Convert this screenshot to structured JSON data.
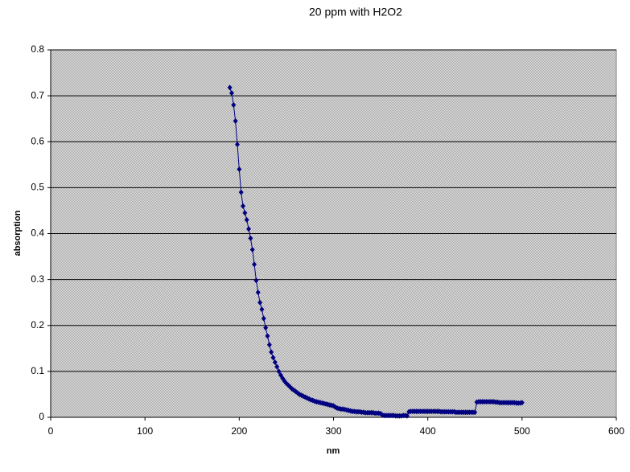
{
  "chart_data": {
    "type": "scatter",
    "title": "20 ppm with H2O2",
    "x_label": "nm",
    "y_label": "absorption",
    "xlim": [
      0,
      600
    ],
    "xticks": [
      0,
      100,
      200,
      300,
      400,
      500,
      600
    ],
    "ylim": [
      0,
      0.8
    ],
    "yticks": [
      0,
      0.1,
      0.2,
      0.3,
      0.4,
      0.5,
      0.6,
      0.7,
      0.8
    ],
    "grid": true,
    "series": [
      {
        "color": "#000080",
        "x": [
          190,
          192,
          194,
          196,
          198,
          200,
          202,
          204,
          206,
          208,
          210,
          212,
          214,
          216,
          218,
          220,
          222,
          224,
          226,
          228,
          230,
          232,
          234,
          236,
          238,
          240,
          242,
          244,
          246,
          248,
          250,
          252,
          254,
          256,
          258,
          260,
          262,
          264,
          266,
          268,
          270,
          272,
          274,
          276,
          278,
          280,
          282,
          284,
          286,
          288,
          290,
          292,
          294,
          296,
          298,
          300,
          302,
          304,
          306,
          308,
          310,
          312,
          314,
          316,
          318,
          320,
          322,
          324,
          326,
          328,
          330,
          332,
          334,
          336,
          338,
          340,
          342,
          344,
          346,
          348,
          350,
          352,
          354,
          356,
          358,
          360,
          362,
          364,
          366,
          368,
          370,
          372,
          374,
          376,
          378,
          380,
          382,
          384,
          386,
          388,
          390,
          392,
          394,
          396,
          398,
          400,
          402,
          404,
          406,
          408,
          410,
          412,
          414,
          416,
          418,
          420,
          422,
          424,
          426,
          428,
          430,
          432,
          434,
          436,
          438,
          440,
          442,
          444,
          446,
          448,
          450,
          452,
          454,
          456,
          458,
          460,
          462,
          464,
          466,
          468,
          470,
          472,
          474,
          476,
          478,
          480,
          482,
          484,
          486,
          488,
          490,
          492,
          494,
          496,
          498,
          500
        ],
        "values": [
          0.718,
          0.706,
          0.68,
          0.645,
          0.594,
          0.54,
          0.49,
          0.46,
          0.445,
          0.43,
          0.41,
          0.39,
          0.365,
          0.333,
          0.298,
          0.272,
          0.25,
          0.235,
          0.215,
          0.195,
          0.177,
          0.158,
          0.142,
          0.13,
          0.12,
          0.11,
          0.1,
          0.092,
          0.085,
          0.079,
          0.074,
          0.07,
          0.066,
          0.062,
          0.059,
          0.056,
          0.053,
          0.05,
          0.048,
          0.046,
          0.044,
          0.042,
          0.04,
          0.038,
          0.037,
          0.035,
          0.034,
          0.033,
          0.032,
          0.031,
          0.03,
          0.029,
          0.028,
          0.027,
          0.026,
          0.025,
          0.022,
          0.02,
          0.019,
          0.018,
          0.018,
          0.017,
          0.016,
          0.015,
          0.014,
          0.013,
          0.013,
          0.012,
          0.012,
          0.012,
          0.011,
          0.011,
          0.01,
          0.01,
          0.01,
          0.01,
          0.01,
          0.009,
          0.009,
          0.009,
          0.008,
          0.005,
          0.004,
          0.004,
          0.004,
          0.004,
          0.004,
          0.004,
          0.003,
          0.003,
          0.003,
          0.003,
          0.004,
          0.004,
          0.003,
          0.012,
          0.013,
          0.013,
          0.013,
          0.013,
          0.013,
          0.013,
          0.013,
          0.013,
          0.013,
          0.013,
          0.013,
          0.013,
          0.013,
          0.013,
          0.013,
          0.013,
          0.012,
          0.012,
          0.012,
          0.012,
          0.012,
          0.012,
          0.012,
          0.012,
          0.011,
          0.011,
          0.011,
          0.011,
          0.011,
          0.011,
          0.011,
          0.011,
          0.011,
          0.011,
          0.011,
          0.033,
          0.034,
          0.034,
          0.034,
          0.034,
          0.034,
          0.034,
          0.034,
          0.034,
          0.034,
          0.033,
          0.033,
          0.032,
          0.032,
          0.032,
          0.032,
          0.032,
          0.032,
          0.032,
          0.032,
          0.032,
          0.031,
          0.031,
          0.031,
          0.032
        ]
      }
    ]
  }
}
